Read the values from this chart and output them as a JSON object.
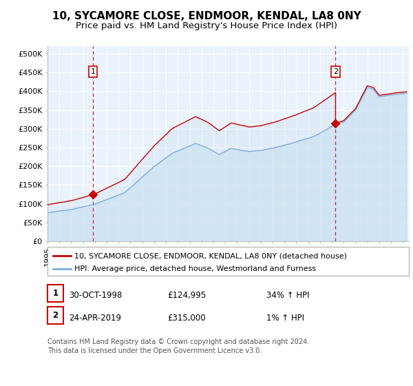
{
  "title": "10, SYCAMORE CLOSE, ENDMOOR, KENDAL, LA8 0NY",
  "subtitle": "Price paid vs. HM Land Registry's House Price Index (HPI)",
  "ylabel_ticks": [
    "£0",
    "£50K",
    "£100K",
    "£150K",
    "£200K",
    "£250K",
    "£300K",
    "£350K",
    "£400K",
    "£450K",
    "£500K"
  ],
  "ytick_values": [
    0,
    50000,
    100000,
    150000,
    200000,
    250000,
    300000,
    350000,
    400000,
    450000,
    500000
  ],
  "ylim": [
    0,
    520000
  ],
  "xlim_start": 1995.0,
  "xlim_end": 2025.5,
  "purchase1_date": 1998.83,
  "purchase1_price": 124995,
  "purchase2_date": 2019.31,
  "purchase2_price": 315000,
  "hpi_line_color": "#7aaddc",
  "hpi_fill_color": "#c8dff2",
  "price_line_color": "#cc0000",
  "vline_color": "#cc0000",
  "marker_color": "#cc0000",
  "bg_color": "#ffffff",
  "plot_bg_color": "#eaf3fb",
  "grid_color": "#ffffff",
  "legend_label1": "10, SYCAMORE CLOSE, ENDMOOR, KENDAL, LA8 0NY (detached house)",
  "legend_label2": "HPI: Average price, detached house, Westmorland and Furness",
  "table_row1": [
    "1",
    "30-OCT-1998",
    "£124,995",
    "34% ↑ HPI"
  ],
  "table_row2": [
    "2",
    "24-APR-2019",
    "£315,000",
    "1% ↑ HPI"
  ],
  "footer": "Contains HM Land Registry data © Crown copyright and database right 2024.\nThis data is licensed under the Open Government Licence v3.0.",
  "title_fontsize": 11,
  "subtitle_fontsize": 9.5,
  "tick_fontsize": 8,
  "legend_fontsize": 8,
  "table_fontsize": 8.5,
  "footer_fontsize": 7
}
